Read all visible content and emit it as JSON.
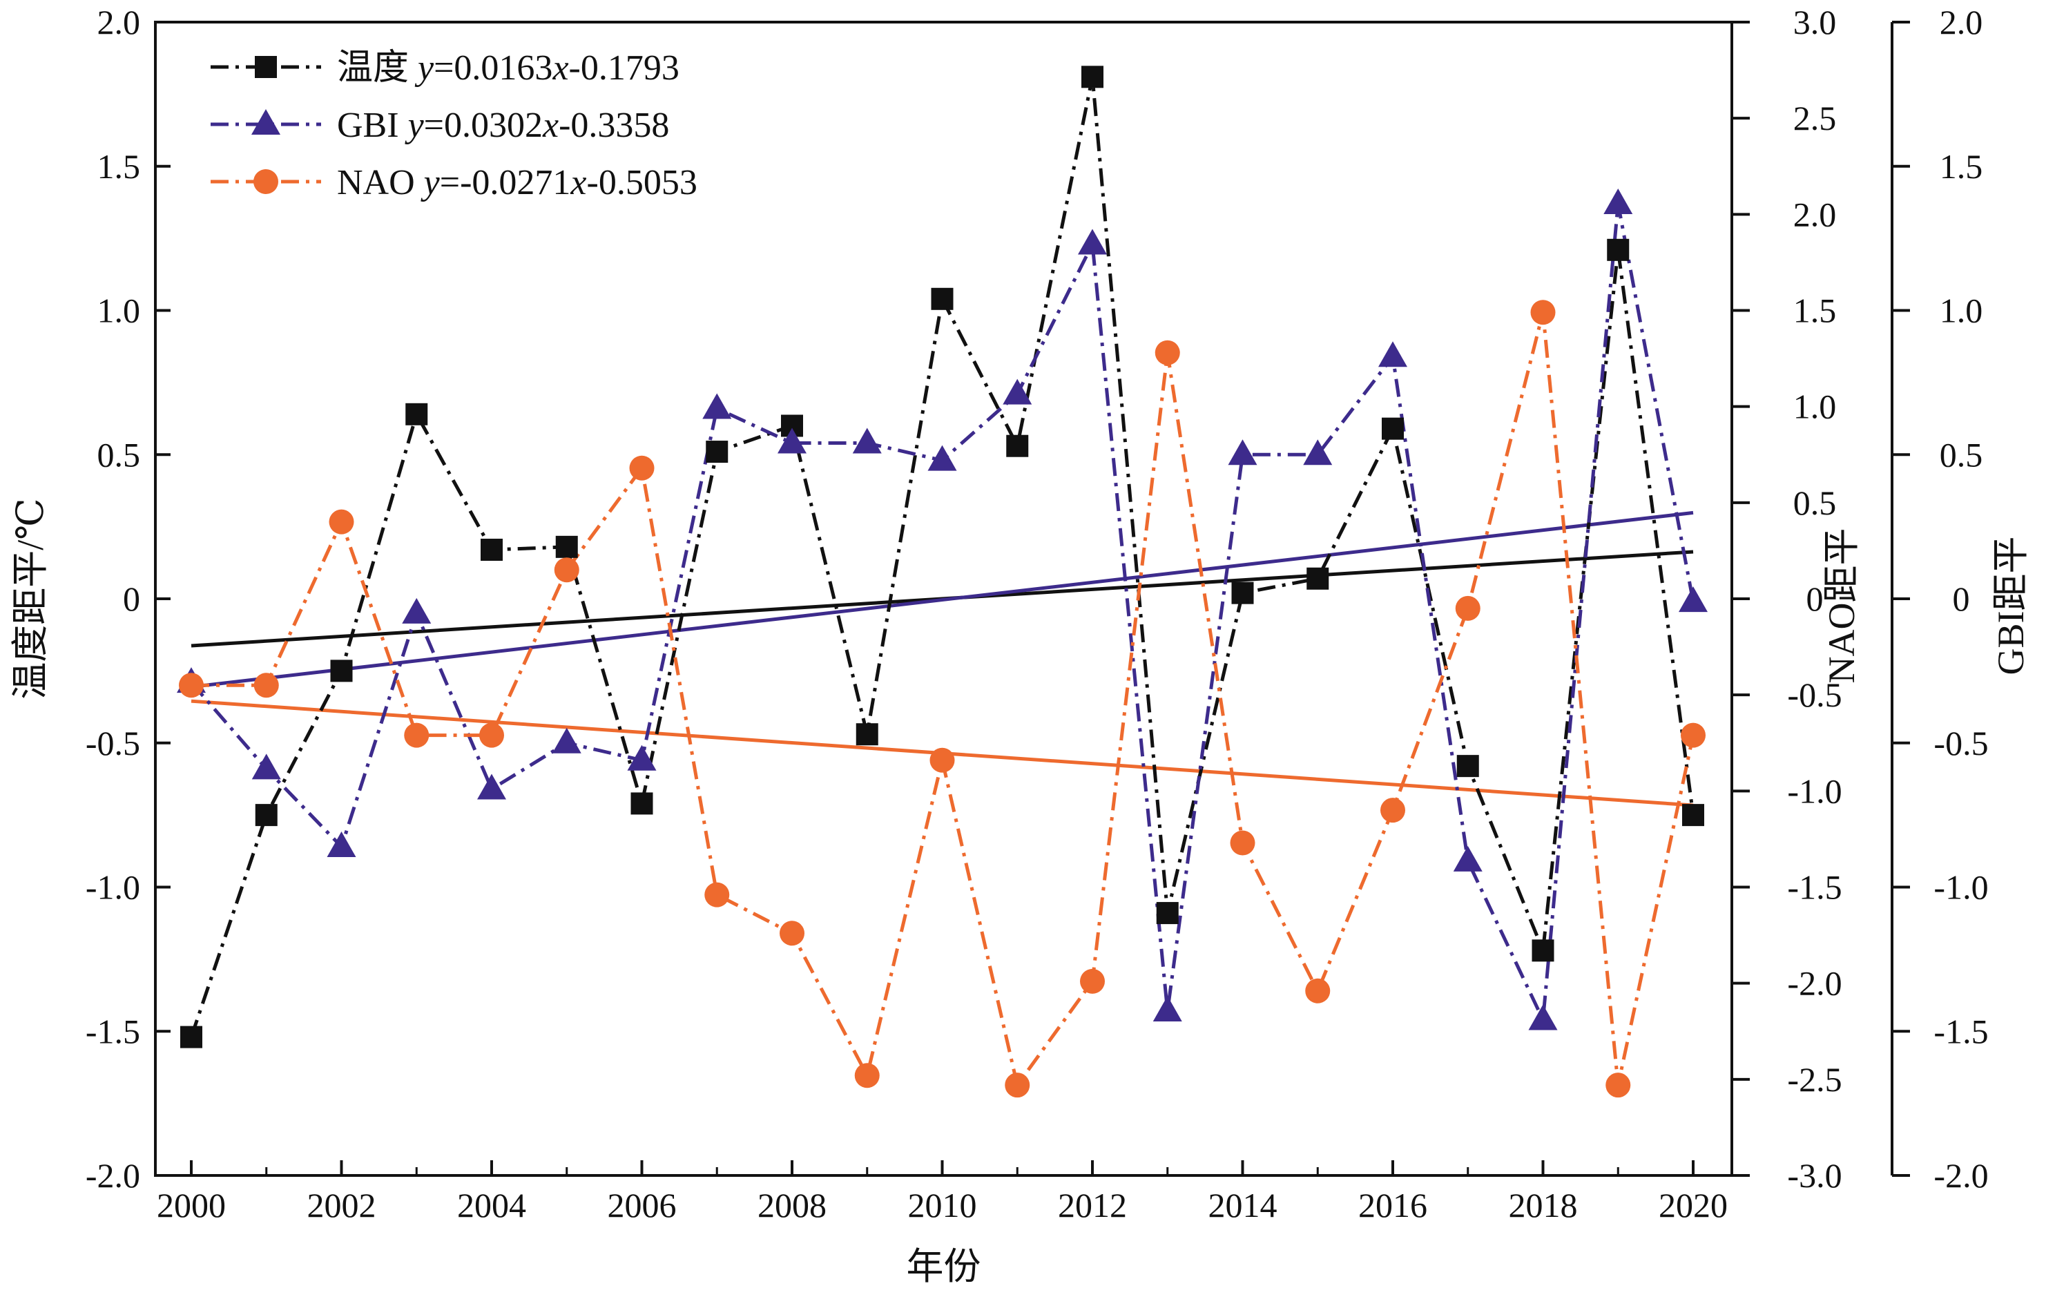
{
  "chart_data": {
    "type": "line",
    "xlabel": "年份",
    "x": [
      2000,
      2001,
      2002,
      2003,
      2004,
      2005,
      2006,
      2007,
      2008,
      2009,
      2010,
      2011,
      2012,
      2013,
      2014,
      2015,
      2016,
      2017,
      2018,
      2019,
      2020
    ],
    "xticks": [
      "2000",
      "2002",
      "2004",
      "2006",
      "2008",
      "2010",
      "2012",
      "2014",
      "2016",
      "2018",
      "2020"
    ],
    "xlim": [
      2000,
      2020
    ],
    "axes": {
      "left": {
        "label": "温度距平/℃",
        "ylim": [
          -2.0,
          2.0
        ],
        "ticks": [
          "2.0",
          "1.5",
          "1.0",
          "0.5",
          "0",
          "-0.5",
          "-1.0",
          "-1.5",
          "-2.0"
        ]
      },
      "right1": {
        "label": "NAO距平",
        "ylim": [
          -3.0,
          3.0
        ],
        "ticks": [
          "3.0",
          "2.5",
          "2.0",
          "1.5",
          "1.0",
          "0.5",
          "0",
          "-0.5",
          "-1.0",
          "-1.5",
          "-2.0",
          "-2.5",
          "-3.0"
        ]
      },
      "right2": {
        "label": "GBI距平",
        "ylim": [
          -2.0,
          2.0
        ],
        "ticks": [
          "2.0",
          "1.5",
          "1.0",
          "0.5",
          "0",
          "-0.5",
          "-1.0",
          "-1.5",
          "-2.0"
        ]
      }
    },
    "series": [
      {
        "name": "温度",
        "equation_y": "y",
        "equation_rest": "=0.0163",
        "equation_x": "x",
        "equation_tail": "-0.1793",
        "axis": "left",
        "color": "#111111",
        "marker": "square",
        "values": [
          -1.52,
          -0.75,
          -0.25,
          0.64,
          0.17,
          0.18,
          -0.71,
          0.51,
          0.6,
          -0.47,
          1.04,
          0.53,
          1.81,
          -1.09,
          0.02,
          0.07,
          0.59,
          -0.58,
          -1.22,
          1.21,
          -0.75
        ],
        "trend": {
          "slope": 0.0163,
          "intercept": -0.1793
        }
      },
      {
        "name": "GBI",
        "equation_y": "y",
        "equation_rest": "=0.0302",
        "equation_x": "x",
        "equation_tail": "-0.3358",
        "axis": "right2",
        "color": "#3d2b8c",
        "marker": "triangle",
        "values": [
          -0.29,
          -0.59,
          -0.86,
          -0.05,
          -0.66,
          -0.5,
          -0.56,
          0.66,
          0.54,
          0.54,
          0.48,
          0.71,
          1.23,
          -1.43,
          0.5,
          0.5,
          0.84,
          -0.91,
          -1.46,
          1.37,
          -0.01
        ],
        "trend": {
          "slope": 0.0302,
          "intercept": -0.3358
        }
      },
      {
        "name": "NAO",
        "equation_y": "y",
        "equation_rest": "=-0.0271",
        "equation_x": "x",
        "equation_tail": "-0.5053",
        "axis": "right1",
        "color": "#ee6a2e",
        "marker": "circle",
        "values": [
          -0.45,
          -0.45,
          0.4,
          -0.71,
          -0.71,
          0.15,
          0.68,
          -1.54,
          -1.74,
          -2.48,
          -0.84,
          -2.53,
          -1.99,
          1.28,
          -1.27,
          -2.04,
          -1.1,
          -0.05,
          1.49,
          -2.53,
          -0.71
        ],
        "trend": {
          "slope": -0.0271,
          "intercept": -0.5053
        }
      }
    ],
    "grid": false,
    "legend": "top-left"
  }
}
